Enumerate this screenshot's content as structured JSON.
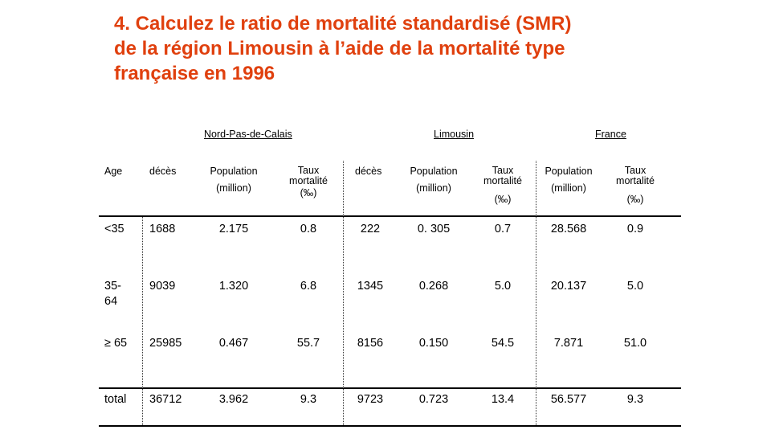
{
  "title_lines": [
    "4. Calculez le ratio de mortalité standardisé (SMR)",
    "de la région Limousin à l’aide de la mortalité type",
    "française en 1996"
  ],
  "groups": {
    "nord": "Nord-Pas-de-Calais",
    "limousin": "Limousin",
    "france": "France"
  },
  "headers": {
    "age": "Age",
    "deces": "décès",
    "population": "Population",
    "million": "(million)",
    "taux": "Taux",
    "mortalite": "mortalité",
    "permille": "(‰)"
  },
  "rows": [
    {
      "age": "<35",
      "age2": "",
      "npc_deces": "1688",
      "npc_pop": "2.175",
      "npc_taux": "0.8",
      "lim_deces": "222",
      "lim_pop": "0. 305",
      "lim_taux": "0.7",
      "fr_pop": "28.568",
      "fr_taux": "0.9"
    },
    {
      "age": "35-",
      "age2": "64",
      "npc_deces": "9039",
      "npc_pop": "1.320",
      "npc_taux": "6.8",
      "lim_deces": "1345",
      "lim_pop": "0.268",
      "lim_taux": "5.0",
      "fr_pop": "20.137",
      "fr_taux": "5.0"
    },
    {
      "age": "≥ 65",
      "age2": "",
      "npc_deces": "25985",
      "npc_pop": "0.467",
      "npc_taux": "55.7",
      "lim_deces": "8156",
      "lim_pop": "0.150",
      "lim_taux": "54.5",
      "fr_pop": "7.871",
      "fr_taux": "51.0"
    },
    {
      "age": "total",
      "age2": "",
      "npc_deces": "36712",
      "npc_pop": "3.962",
      "npc_taux": "9.3",
      "lim_deces": "9723",
      "lim_pop": "0.723",
      "lim_taux": "13.4",
      "fr_pop": "56.577",
      "fr_taux": "9.3"
    }
  ]
}
